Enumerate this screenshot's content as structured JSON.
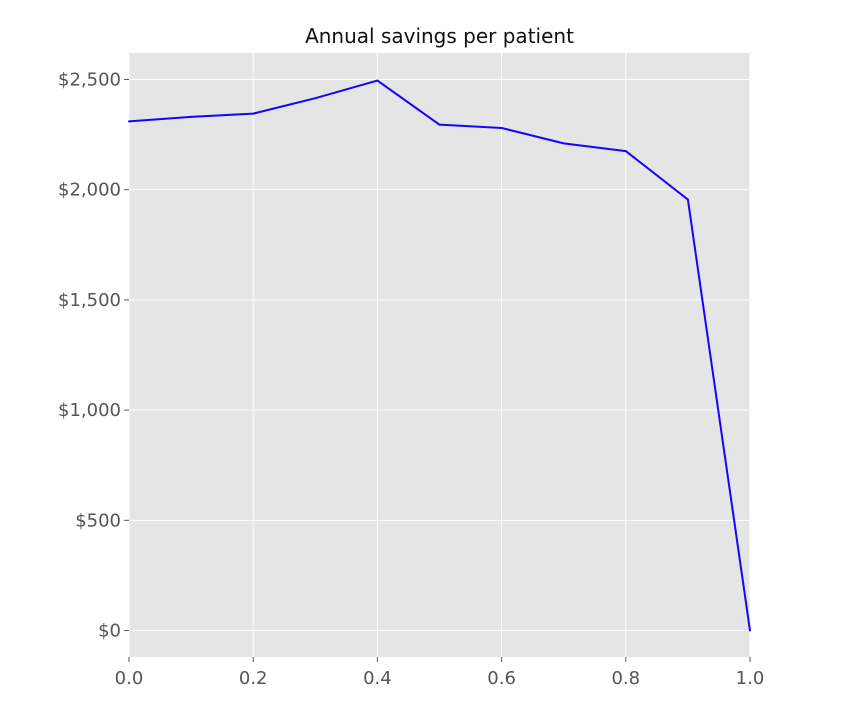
{
  "chart_data": {
    "type": "line",
    "title": "Annual savings per patient",
    "xlabel": "",
    "ylabel": "",
    "xlim": [
      0.0,
      1.0
    ],
    "ylim": [
      -120,
      2620
    ],
    "xticks": [
      0.0,
      0.2,
      0.4,
      0.6,
      0.8,
      1.0
    ],
    "xtick_labels": [
      "0.0",
      "0.2",
      "0.4",
      "0.6",
      "0.8",
      "1.0"
    ],
    "yticks": [
      0,
      500,
      1000,
      1500,
      2000,
      2500
    ],
    "ytick_labels": [
      "$0",
      "$500",
      "$1,000",
      "$1,500",
      "$2,000",
      "$2,500"
    ],
    "grid": true,
    "background": "#e5e5e5",
    "grid_color": "#ffffff",
    "series": [
      {
        "color": "#1a00ff",
        "x": [
          0.0,
          0.1,
          0.2,
          0.3,
          0.4,
          0.5,
          0.6,
          0.7,
          0.8,
          0.9,
          1.0
        ],
        "y": [
          2310,
          2330,
          2345,
          2415,
          2495,
          2295,
          2280,
          2210,
          2175,
          1955,
          0
        ]
      }
    ]
  }
}
